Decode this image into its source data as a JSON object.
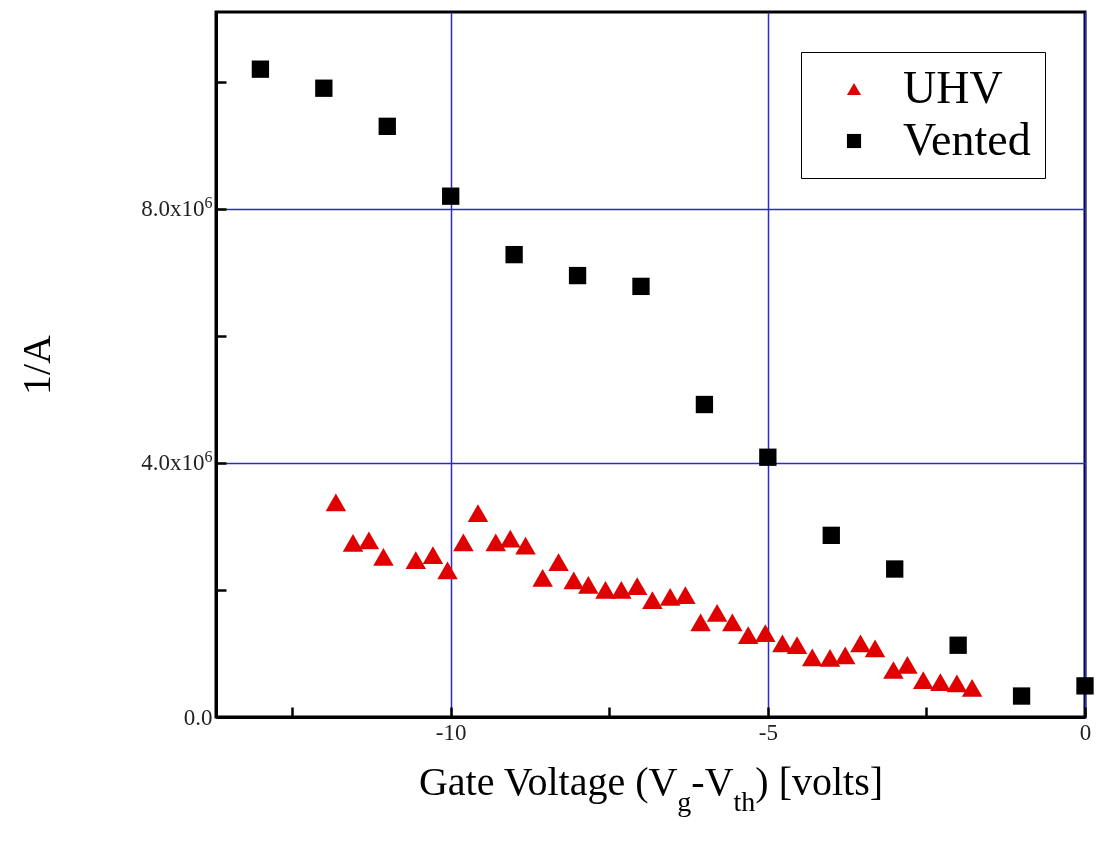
{
  "chart_data": {
    "type": "scatter",
    "xlabel": "Gate Voltage (V$_{g}$-V$_{th}$) [volts]",
    "ylabel": "1/A",
    "xlim": [
      -13.7,
      0
    ],
    "ylim": [
      0,
      11100000
    ],
    "xticks": [
      {
        "value": -12.5,
        "label": null
      },
      -10,
      {
        "value": -7.5,
        "label": null
      },
      -5,
      {
        "value": -2.5,
        "label": null
      },
      0
    ],
    "yticks": [
      {
        "value": 0,
        "label": "0.0"
      },
      {
        "value": 2000000,
        "label": null
      },
      {
        "value": 4000000,
        "label": "4.0x10$^{6}$"
      },
      {
        "value": 6000000,
        "label": null
      },
      {
        "value": 8000000,
        "label": "8.0x10$^{6}$"
      },
      {
        "value": 10000000,
        "label": null
      }
    ],
    "grid": true,
    "legend": "top right",
    "series": [
      {
        "name": "UHV",
        "color": "#e00000",
        "marker": "triangle",
        "x": [
          -11.81,
          -11.54,
          -11.29,
          -11.06,
          -10.55,
          -10.28,
          -10.05,
          -9.8,
          -9.57,
          -9.29,
          -9.06,
          -8.82,
          -8.55,
          -8.3,
          -8.06,
          -7.83,
          -7.56,
          -7.31,
          -7.06,
          -6.82,
          -6.54,
          -6.3,
          -6.06,
          -5.8,
          -5.56,
          -5.31,
          -5.04,
          -4.77,
          -4.54,
          -4.3,
          -4.02,
          -3.78,
          -3.54,
          -3.31,
          -3.02,
          -2.8,
          -2.55,
          -2.28,
          -2.02,
          -1.78
        ],
        "values": [
          3380000,
          2740000,
          2780000,
          2520000,
          2470000,
          2550000,
          2310000,
          2750000,
          3210000,
          2750000,
          2810000,
          2700000,
          2190000,
          2440000,
          2150000,
          2080000,
          2000000,
          2000000,
          2060000,
          1840000,
          1890000,
          1920000,
          1490000,
          1640000,
          1490000,
          1290000,
          1320000,
          1160000,
          1130000,
          940000,
          930000,
          970000,
          1160000,
          1080000,
          740000,
          820000,
          580000,
          550000,
          530000,
          460000
        ]
      },
      {
        "name": "Vented",
        "color": "#000000",
        "marker": "square",
        "x": [
          -13,
          -12,
          -11,
          -10,
          -9,
          -8,
          -7,
          -6,
          -5,
          -4,
          -3,
          -2,
          -1,
          0
        ],
        "values": [
          10200000,
          9900000,
          9300000,
          8200000,
          7280000,
          6950000,
          6780000,
          4920000,
          4090000,
          2860000,
          2330000,
          1130000,
          330000,
          490000
        ]
      }
    ]
  }
}
